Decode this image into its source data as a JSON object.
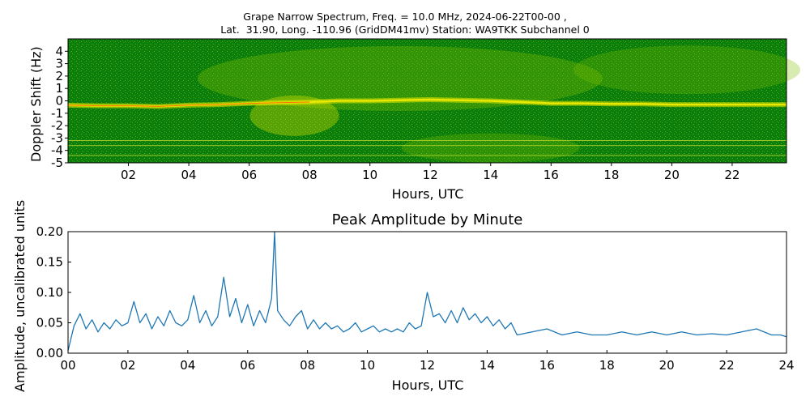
{
  "chart_data": [
    {
      "type": "heatmap",
      "title_line1": "Grape Narrow Spectrum, Freq. = 10.0 MHz, 2024-06-22T00-00 ,",
      "title_line2": "Lat.  31.90, Long. -110.96 (GridDM41mv) Station: WA9TKK Subchannel 0",
      "xlabel": "Hours, UTC",
      "ylabel": "Doppler Shift (Hz)",
      "xlim": [
        0,
        23.8
      ],
      "ylim": [
        -5,
        5
      ],
      "xticks": [
        2,
        4,
        6,
        8,
        10,
        12,
        14,
        16,
        18,
        20,
        22
      ],
      "xtick_labels": [
        "02",
        "04",
        "06",
        "08",
        "10",
        "12",
        "14",
        "16",
        "18",
        "20",
        "22"
      ],
      "yticks": [
        4,
        3,
        2,
        1,
        0,
        -1,
        -2,
        -3,
        -4,
        -5
      ],
      "ytick_labels": [
        "4",
        "3",
        "2",
        "1",
        "0",
        "-1",
        "-2",
        "-3",
        "-4",
        "-5"
      ],
      "colors": {
        "background": "#0a7d0a",
        "mid": "#7fbf00",
        "high": "#e8e800",
        "peak": "#ff4000"
      },
      "trace_hz": [
        [
          0,
          -0.35
        ],
        [
          1,
          -0.4
        ],
        [
          2,
          -0.4
        ],
        [
          3,
          -0.45
        ],
        [
          4,
          -0.35
        ],
        [
          5,
          -0.3
        ],
        [
          6,
          -0.2
        ],
        [
          7,
          -0.15
        ],
        [
          8,
          -0.1
        ],
        [
          9,
          0
        ],
        [
          10,
          0
        ],
        [
          11,
          0.05
        ],
        [
          12,
          0.1
        ],
        [
          13,
          0.05
        ],
        [
          14,
          0
        ],
        [
          15,
          -0.1
        ],
        [
          16,
          -0.2
        ],
        [
          17,
          -0.2
        ],
        [
          18,
          -0.25
        ],
        [
          19,
          -0.25
        ],
        [
          20,
          -0.3
        ],
        [
          21,
          -0.3
        ],
        [
          22,
          -0.3
        ],
        [
          23,
          -0.3
        ],
        [
          23.8,
          -0.3
        ]
      ]
    },
    {
      "type": "line",
      "title": "Peak Amplitude by Minute",
      "xlabel": "Hours, UTC",
      "ylabel": "Amplitude, uncalibrated units",
      "xlim": [
        0,
        24
      ],
      "ylim": [
        0,
        0.2
      ],
      "xticks": [
        0,
        2,
        4,
        6,
        8,
        10,
        12,
        14,
        16,
        18,
        20,
        22,
        24
      ],
      "xtick_labels": [
        "00",
        "02",
        "04",
        "06",
        "08",
        "10",
        "12",
        "14",
        "16",
        "18",
        "20",
        "22",
        "24"
      ],
      "yticks": [
        0,
        0.05,
        0.1,
        0.15,
        0.2
      ],
      "ytick_labels": [
        "0.00",
        "0.05",
        "0.10",
        "0.15",
        "0.20"
      ],
      "line_color": "#1f77b4",
      "x": [
        0,
        0.2,
        0.4,
        0.6,
        0.8,
        1,
        1.2,
        1.4,
        1.6,
        1.8,
        2,
        2.2,
        2.4,
        2.6,
        2.8,
        3,
        3.2,
        3.4,
        3.6,
        3.8,
        4,
        4.2,
        4.4,
        4.6,
        4.8,
        5,
        5.2,
        5.4,
        5.6,
        5.8,
        6,
        6.2,
        6.4,
        6.6,
        6.8,
        6.9,
        7,
        7.2,
        7.4,
        7.6,
        7.8,
        8,
        8.2,
        8.4,
        8.6,
        8.8,
        9,
        9.2,
        9.4,
        9.6,
        9.8,
        10,
        10.2,
        10.4,
        10.6,
        10.8,
        11,
        11.2,
        11.4,
        11.6,
        11.8,
        12,
        12.2,
        12.4,
        12.6,
        12.8,
        13,
        13.2,
        13.4,
        13.6,
        13.8,
        14,
        14.2,
        14.4,
        14.6,
        14.8,
        15,
        15.5,
        16,
        16.5,
        17,
        17.5,
        18,
        18.5,
        19,
        19.5,
        20,
        20.5,
        21,
        21.5,
        22,
        22.5,
        23,
        23.5,
        23.8,
        24
      ],
      "y": [
        0.004,
        0.045,
        0.065,
        0.04,
        0.055,
        0.035,
        0.05,
        0.04,
        0.055,
        0.045,
        0.05,
        0.085,
        0.05,
        0.065,
        0.04,
        0.06,
        0.045,
        0.07,
        0.05,
        0.045,
        0.055,
        0.095,
        0.05,
        0.07,
        0.045,
        0.06,
        0.125,
        0.06,
        0.09,
        0.05,
        0.08,
        0.045,
        0.07,
        0.05,
        0.09,
        0.2,
        0.07,
        0.055,
        0.045,
        0.06,
        0.07,
        0.04,
        0.055,
        0.04,
        0.05,
        0.04,
        0.045,
        0.035,
        0.04,
        0.05,
        0.035,
        0.04,
        0.045,
        0.035,
        0.04,
        0.035,
        0.04,
        0.035,
        0.05,
        0.04,
        0.045,
        0.1,
        0.06,
        0.065,
        0.05,
        0.07,
        0.05,
        0.075,
        0.055,
        0.065,
        0.05,
        0.06,
        0.045,
        0.055,
        0.04,
        0.05,
        0.03,
        0.035,
        0.04,
        0.03,
        0.035,
        0.03,
        0.03,
        0.035,
        0.03,
        0.035,
        0.03,
        0.035,
        0.03,
        0.032,
        0.03,
        0.035,
        0.04,
        0.03,
        0.03,
        0.027
      ]
    }
  ]
}
